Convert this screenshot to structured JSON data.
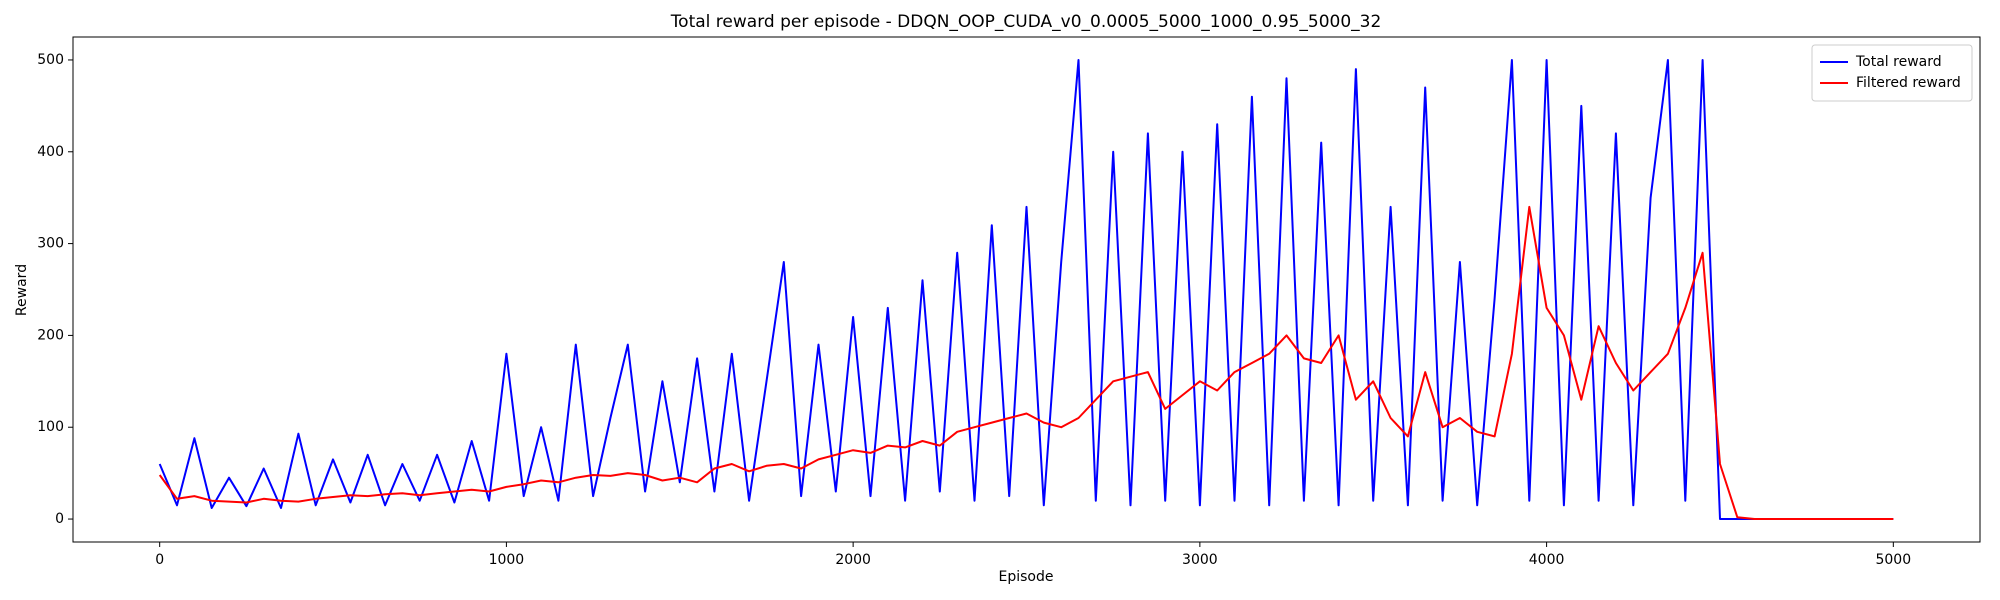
{
  "chart_data": {
    "type": "line",
    "title": "Total reward per episode - DDQN_OOP_CUDA_v0_0.0005_5000_1000_0.95_5000_32",
    "x_label": "Episode",
    "y_label": "Reward",
    "x": [
      0,
      50,
      100,
      150,
      200,
      250,
      300,
      350,
      400,
      450,
      500,
      550,
      600,
      650,
      700,
      750,
      800,
      850,
      900,
      950,
      1000,
      1050,
      1100,
      1150,
      1200,
      1250,
      1300,
      1350,
      1400,
      1450,
      1500,
      1550,
      1600,
      1650,
      1700,
      1750,
      1800,
      1850,
      1900,
      1950,
      2000,
      2050,
      2100,
      2150,
      2200,
      2250,
      2300,
      2350,
      2400,
      2450,
      2500,
      2550,
      2600,
      2650,
      2700,
      2750,
      2800,
      2850,
      2900,
      2950,
      3000,
      3050,
      3100,
      3150,
      3200,
      3250,
      3300,
      3350,
      3400,
      3450,
      3500,
      3550,
      3600,
      3650,
      3700,
      3750,
      3800,
      3850,
      3900,
      3950,
      4000,
      4050,
      4100,
      4150,
      4200,
      4250,
      4300,
      4350,
      4400,
      4450,
      4500,
      4550,
      4600,
      4650,
      4700,
      4750,
      4800,
      4850,
      4900,
      4950,
      5000
    ],
    "series": [
      {
        "name": "Total reward",
        "color": "#0000ff",
        "values": [
          60,
          15,
          88,
          12,
          45,
          14,
          55,
          12,
          93,
          15,
          65,
          18,
          70,
          15,
          60,
          20,
          70,
          18,
          85,
          20,
          180,
          25,
          100,
          20,
          190,
          25,
          110,
          190,
          30,
          150,
          40,
          175,
          30,
          180,
          20,
          150,
          280,
          25,
          190,
          30,
          220,
          25,
          230,
          20,
          260,
          30,
          290,
          20,
          320,
          25,
          340,
          15,
          280,
          500,
          20,
          400,
          15,
          420,
          20,
          400,
          15,
          430,
          20,
          460,
          15,
          480,
          20,
          410,
          15,
          490,
          20,
          340,
          15,
          470,
          20,
          280,
          15,
          240,
          500,
          20,
          500,
          15,
          450,
          20,
          420,
          15,
          350,
          500,
          20,
          500,
          0,
          0,
          0,
          0,
          0,
          0,
          0,
          0,
          0,
          0,
          0
        ]
      },
      {
        "name": "Filtered reward",
        "color": "#ff0000",
        "values": [
          48,
          22,
          25,
          20,
          19,
          18,
          22,
          20,
          19,
          22,
          24,
          26,
          25,
          27,
          28,
          26,
          28,
          30,
          32,
          30,
          35,
          38,
          42,
          40,
          45,
          48,
          47,
          50,
          48,
          42,
          45,
          40,
          55,
          60,
          52,
          58,
          60,
          55,
          65,
          70,
          75,
          72,
          80,
          78,
          85,
          80,
          95,
          100,
          105,
          110,
          115,
          105,
          100,
          110,
          130,
          150,
          155,
          160,
          120,
          135,
          150,
          140,
          160,
          170,
          180,
          200,
          175,
          170,
          200,
          130,
          150,
          110,
          90,
          160,
          100,
          110,
          95,
          90,
          180,
          340,
          230,
          200,
          130,
          210,
          170,
          140,
          160,
          180,
          230,
          290,
          60,
          2,
          0,
          0,
          0,
          0,
          0,
          0,
          0,
          0,
          0
        ]
      }
    ],
    "xlim": [
      -250,
      5250
    ],
    "ylim": [
      -25,
      525
    ],
    "xticks": [
      0,
      1000,
      2000,
      3000,
      4000,
      5000
    ],
    "yticks": [
      0,
      100,
      200,
      300,
      400,
      500
    ],
    "legend": "upper right",
    "grid": false
  }
}
